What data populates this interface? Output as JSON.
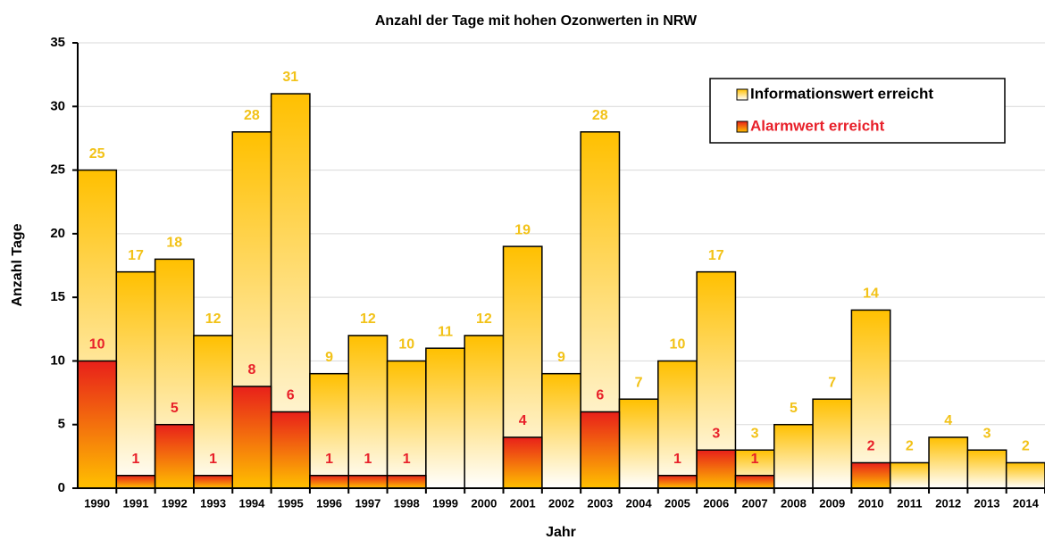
{
  "chart_data": {
    "type": "bar",
    "title": "Anzahl der Tage mit hohen Ozonwerten in NRW",
    "xlabel": "Jahr",
    "ylabel": "Anzahl Tage",
    "categories": [
      "1990",
      "1991",
      "1992",
      "1993",
      "1994",
      "1995",
      "1996",
      "1997",
      "1998",
      "1999",
      "2000",
      "2001",
      "2002",
      "2003",
      "2004",
      "2005",
      "2006",
      "2007",
      "2008",
      "2009",
      "2010",
      "2011",
      "2012",
      "2013",
      "2014"
    ],
    "series": [
      {
        "name": "Informationswert erreicht",
        "color": "#ffc000",
        "label_color": "#f2c218",
        "values": [
          25,
          17,
          18,
          12,
          28,
          31,
          9,
          12,
          10,
          11,
          12,
          19,
          9,
          28,
          7,
          10,
          17,
          3,
          5,
          7,
          14,
          2,
          4,
          3,
          2
        ]
      },
      {
        "name": "Alarmwert erreicht",
        "color": "#e8201a",
        "label_color": "#e8202a",
        "values": [
          10,
          1,
          5,
          1,
          8,
          6,
          1,
          1,
          1,
          null,
          null,
          4,
          null,
          6,
          null,
          1,
          3,
          1,
          null,
          null,
          2,
          null,
          null,
          null,
          null
        ]
      }
    ],
    "ylim": [
      0,
      35
    ],
    "yticks": [
      0,
      5,
      10,
      15,
      20,
      25,
      30,
      35
    ],
    "grid": true,
    "legend": "upper right",
    "overlap": true
  }
}
